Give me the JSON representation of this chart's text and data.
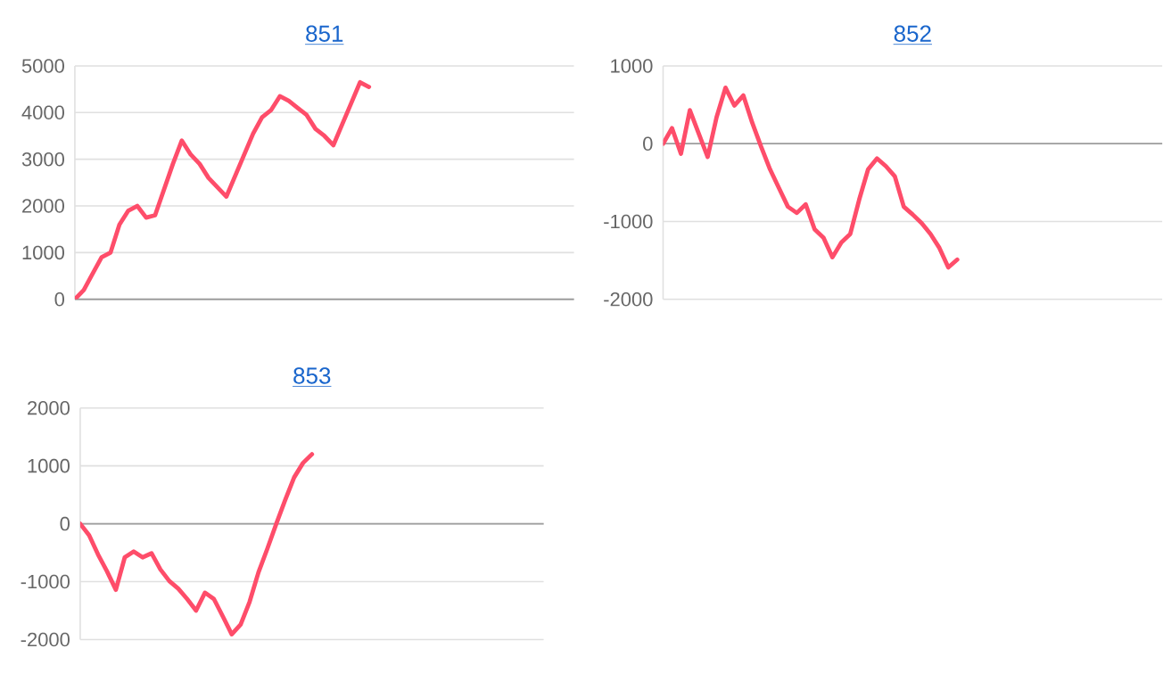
{
  "chart_data": [
    {
      "type": "line",
      "title": "851",
      "color": "#fe4d6a",
      "grid": "y",
      "tick_labels": "y",
      "ylim": [
        0,
        5000
      ],
      "yticks": [
        0,
        1000,
        2000,
        3000,
        4000,
        5000
      ],
      "categories": [
        null,
        null,
        null,
        null,
        null,
        null,
        null,
        null,
        null,
        null,
        null,
        null,
        null,
        null,
        null,
        null,
        null,
        null,
        null,
        null,
        null,
        null,
        null,
        null,
        null,
        null,
        null,
        null,
        null,
        null,
        null,
        null,
        null,
        null,
        null,
        null,
        null,
        null,
        null,
        null,
        null,
        null,
        null,
        null,
        null,
        null,
        null,
        null,
        null,
        null,
        null,
        null,
        null,
        null,
        null,
        null,
        null
      ],
      "values": [
        0,
        200,
        550,
        900,
        1000,
        1600,
        1900,
        2000,
        1750,
        1800,
        2350,
        2900,
        3400,
        3100,
        2900,
        2600,
        2400,
        2200,
        2650,
        3100,
        3550,
        3900,
        4050,
        4350,
        4250,
        4100,
        3950,
        3650,
        3500,
        3300,
        3750,
        4200,
        4650,
        4550,
        null,
        null,
        null,
        null,
        null,
        null,
        null,
        null,
        null,
        null,
        null,
        null,
        null,
        null,
        null,
        null,
        null,
        null,
        null,
        null,
        null,
        null,
        null
      ]
    },
    {
      "type": "line",
      "title": "852",
      "color": "#fe4d6a",
      "grid": "y",
      "tick_labels": "y",
      "ylim": [
        -2000,
        1000
      ],
      "yticks": [
        -2000,
        -1000,
        0,
        1000
      ],
      "categories": [
        null,
        null,
        null,
        null,
        null,
        null,
        null,
        null,
        null,
        null,
        null,
        null,
        null,
        null,
        null,
        null,
        null,
        null,
        null,
        null,
        null,
        null,
        null,
        null,
        null,
        null,
        null,
        null,
        null,
        null,
        null,
        null,
        null,
        null,
        null,
        null,
        null,
        null,
        null,
        null,
        null,
        null,
        null,
        null,
        null,
        null,
        null,
        null,
        null,
        null,
        null,
        null,
        null,
        null,
        null,
        null,
        null
      ],
      "values": [
        0,
        200,
        -130,
        430,
        130,
        -170,
        340,
        720,
        490,
        620,
        270,
        -40,
        -330,
        -570,
        -810,
        -890,
        -780,
        -1100,
        -1210,
        -1460,
        -1270,
        -1160,
        -720,
        -330,
        -190,
        -290,
        -420,
        -810,
        -910,
        -1020,
        -1160,
        -1340,
        -1590,
        -1490,
        null,
        null,
        null,
        null,
        null,
        null,
        null,
        null,
        null,
        null,
        null,
        null,
        null,
        null,
        null,
        null,
        null,
        null,
        null,
        null,
        null,
        null,
        null
      ]
    },
    {
      "type": "line",
      "title": "853",
      "color": "#fe4d6a",
      "grid": "y",
      "tick_labels": "y",
      "ylim": [
        -2000,
        2000
      ],
      "yticks": [
        -2000,
        -1000,
        0,
        1000,
        2000
      ],
      "categories": [
        null,
        null,
        null,
        null,
        null,
        null,
        null,
        null,
        null,
        null,
        null,
        null,
        null,
        null,
        null,
        null,
        null,
        null,
        null,
        null,
        null,
        null,
        null,
        null,
        null,
        null,
        null,
        null,
        null,
        null,
        null,
        null,
        null,
        null,
        null,
        null,
        null,
        null,
        null,
        null,
        null,
        null,
        null,
        null,
        null,
        null,
        null,
        null,
        null,
        null,
        null,
        null,
        null
      ],
      "values": [
        0,
        -200,
        -530,
        -820,
        -1140,
        -580,
        -480,
        -580,
        -510,
        -790,
        -990,
        -1120,
        -1300,
        -1500,
        -1190,
        -1300,
        -1600,
        -1910,
        -1740,
        -1350,
        -840,
        -430,
        0,
        410,
        800,
        1050,
        1200,
        null,
        null,
        null,
        null,
        null,
        null,
        null,
        null,
        null,
        null,
        null,
        null,
        null,
        null,
        null,
        null,
        null,
        null,
        null,
        null,
        null,
        null,
        null,
        null,
        null,
        null
      ]
    }
  ]
}
